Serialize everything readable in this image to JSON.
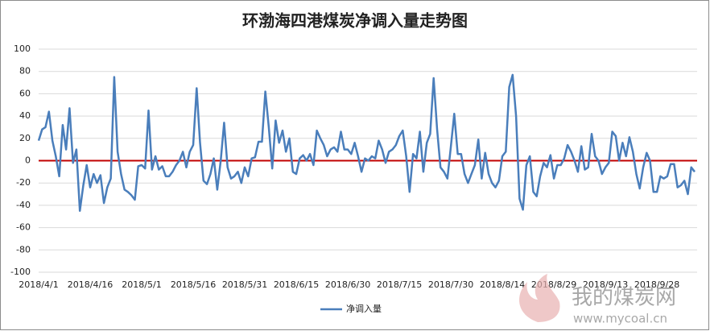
{
  "chart_data": {
    "type": "line",
    "title": "环渤海四港煤炭净调入量走势图",
    "categories": [
      "2018/4/1",
      null,
      null,
      null,
      null,
      null,
      null,
      null,
      null,
      null,
      null,
      null,
      null,
      null,
      null,
      "2018/4/16",
      null,
      null,
      null,
      null,
      null,
      null,
      null,
      null,
      null,
      null,
      null,
      null,
      null,
      null,
      "2018/5/1",
      null,
      null,
      null,
      null,
      null,
      null,
      null,
      null,
      null,
      null,
      null,
      null,
      null,
      null,
      "2018/5/16",
      null,
      null,
      null,
      null,
      null,
      null,
      null,
      null,
      null,
      null,
      null,
      null,
      null,
      null,
      "2018/5/31",
      null,
      null,
      null,
      null,
      null,
      null,
      null,
      null,
      null,
      null,
      null,
      null,
      null,
      null,
      "2018/6/15",
      null,
      null,
      null,
      null,
      null,
      null,
      null,
      null,
      null,
      null,
      null,
      null,
      null,
      null,
      "2018/6/30",
      null,
      null,
      null,
      null,
      null,
      null,
      null,
      null,
      null,
      null,
      null,
      null,
      null,
      null,
      "2018/7/15",
      null,
      null,
      null,
      null,
      null,
      null,
      null,
      null,
      null,
      null,
      null,
      null,
      null,
      null,
      "2018/7/30",
      null,
      null,
      null,
      null,
      null,
      null,
      null,
      null,
      null,
      null,
      null,
      null,
      null,
      null,
      "2018/8/14",
      null,
      null,
      null,
      null,
      null,
      null,
      null,
      null,
      null,
      null,
      null,
      null,
      null,
      null,
      "2018/8/29",
      null,
      null,
      null,
      null,
      null,
      null,
      null,
      null,
      null,
      null,
      null,
      null,
      null,
      null,
      "2018/9/13",
      null,
      null,
      null,
      null,
      null,
      null,
      null,
      null,
      null,
      null,
      null,
      null,
      null,
      null,
      "2018/9/28",
      null,
      null,
      null,
      null,
      null,
      null,
      null,
      null,
      null,
      null,
      null
    ],
    "series": [
      {
        "name": "净调入量",
        "color": "#4a7ebb",
        "values": [
          18,
          28,
          30,
          44,
          18,
          4,
          -14,
          32,
          10,
          47,
          -2,
          10,
          -45,
          -22,
          -4,
          -24,
          -12,
          -20,
          -13,
          -38,
          -24,
          -16,
          75,
          8,
          -12,
          -26,
          -28,
          -31,
          -35,
          -5,
          -4,
          -7,
          45,
          -8,
          4,
          -8,
          -5,
          -14,
          -14,
          -10,
          -4,
          0,
          8,
          -6,
          8,
          14,
          65,
          16,
          -18,
          -21,
          -12,
          2,
          -26,
          0,
          34,
          -6,
          -16,
          -14,
          -10,
          -20,
          -6,
          -14,
          2,
          3,
          17,
          17,
          62,
          30,
          -7,
          36,
          16,
          27,
          8,
          20,
          -10,
          -12,
          2,
          5,
          0,
          6,
          -4,
          27,
          20,
          14,
          4,
          10,
          12,
          8,
          26,
          10,
          10,
          6,
          16,
          4,
          -10,
          2,
          0,
          4,
          2,
          18,
          10,
          -2,
          8,
          10,
          14,
          22,
          27,
          4,
          -28,
          6,
          2,
          26,
          -10,
          16,
          24,
          74,
          28,
          -6,
          -10,
          -16,
          12,
          42,
          6,
          6,
          -12,
          -20,
          -12,
          -4,
          19,
          -16,
          7,
          -12,
          -20,
          -24,
          -18,
          4,
          8,
          66,
          77,
          40,
          -34,
          -44,
          -4,
          4,
          -28,
          -32,
          -14,
          -2,
          -6,
          5,
          -16,
          -4,
          -4,
          2,
          14,
          8,
          0,
          -10,
          13,
          -8,
          -6,
          24,
          4,
          0,
          -12,
          -6,
          -2,
          26,
          22,
          0,
          16,
          4,
          21,
          8,
          -12,
          -25,
          -6,
          7,
          0,
          -28,
          -28,
          -14,
          -16,
          -14,
          -3,
          -3,
          -24,
          -22,
          -18,
          -30,
          -6,
          -10
        ]
      }
    ],
    "ylim": [
      -100,
      100
    ],
    "yticks": [
      -100,
      -80,
      -60,
      -40,
      -20,
      0,
      20,
      40,
      60,
      80,
      100
    ],
    "grid": true,
    "zero_line_color": "#c00000",
    "legend": "bottom",
    "watermark": {
      "name": "我的煤炭网",
      "url": "www.mycoal.cn"
    }
  }
}
